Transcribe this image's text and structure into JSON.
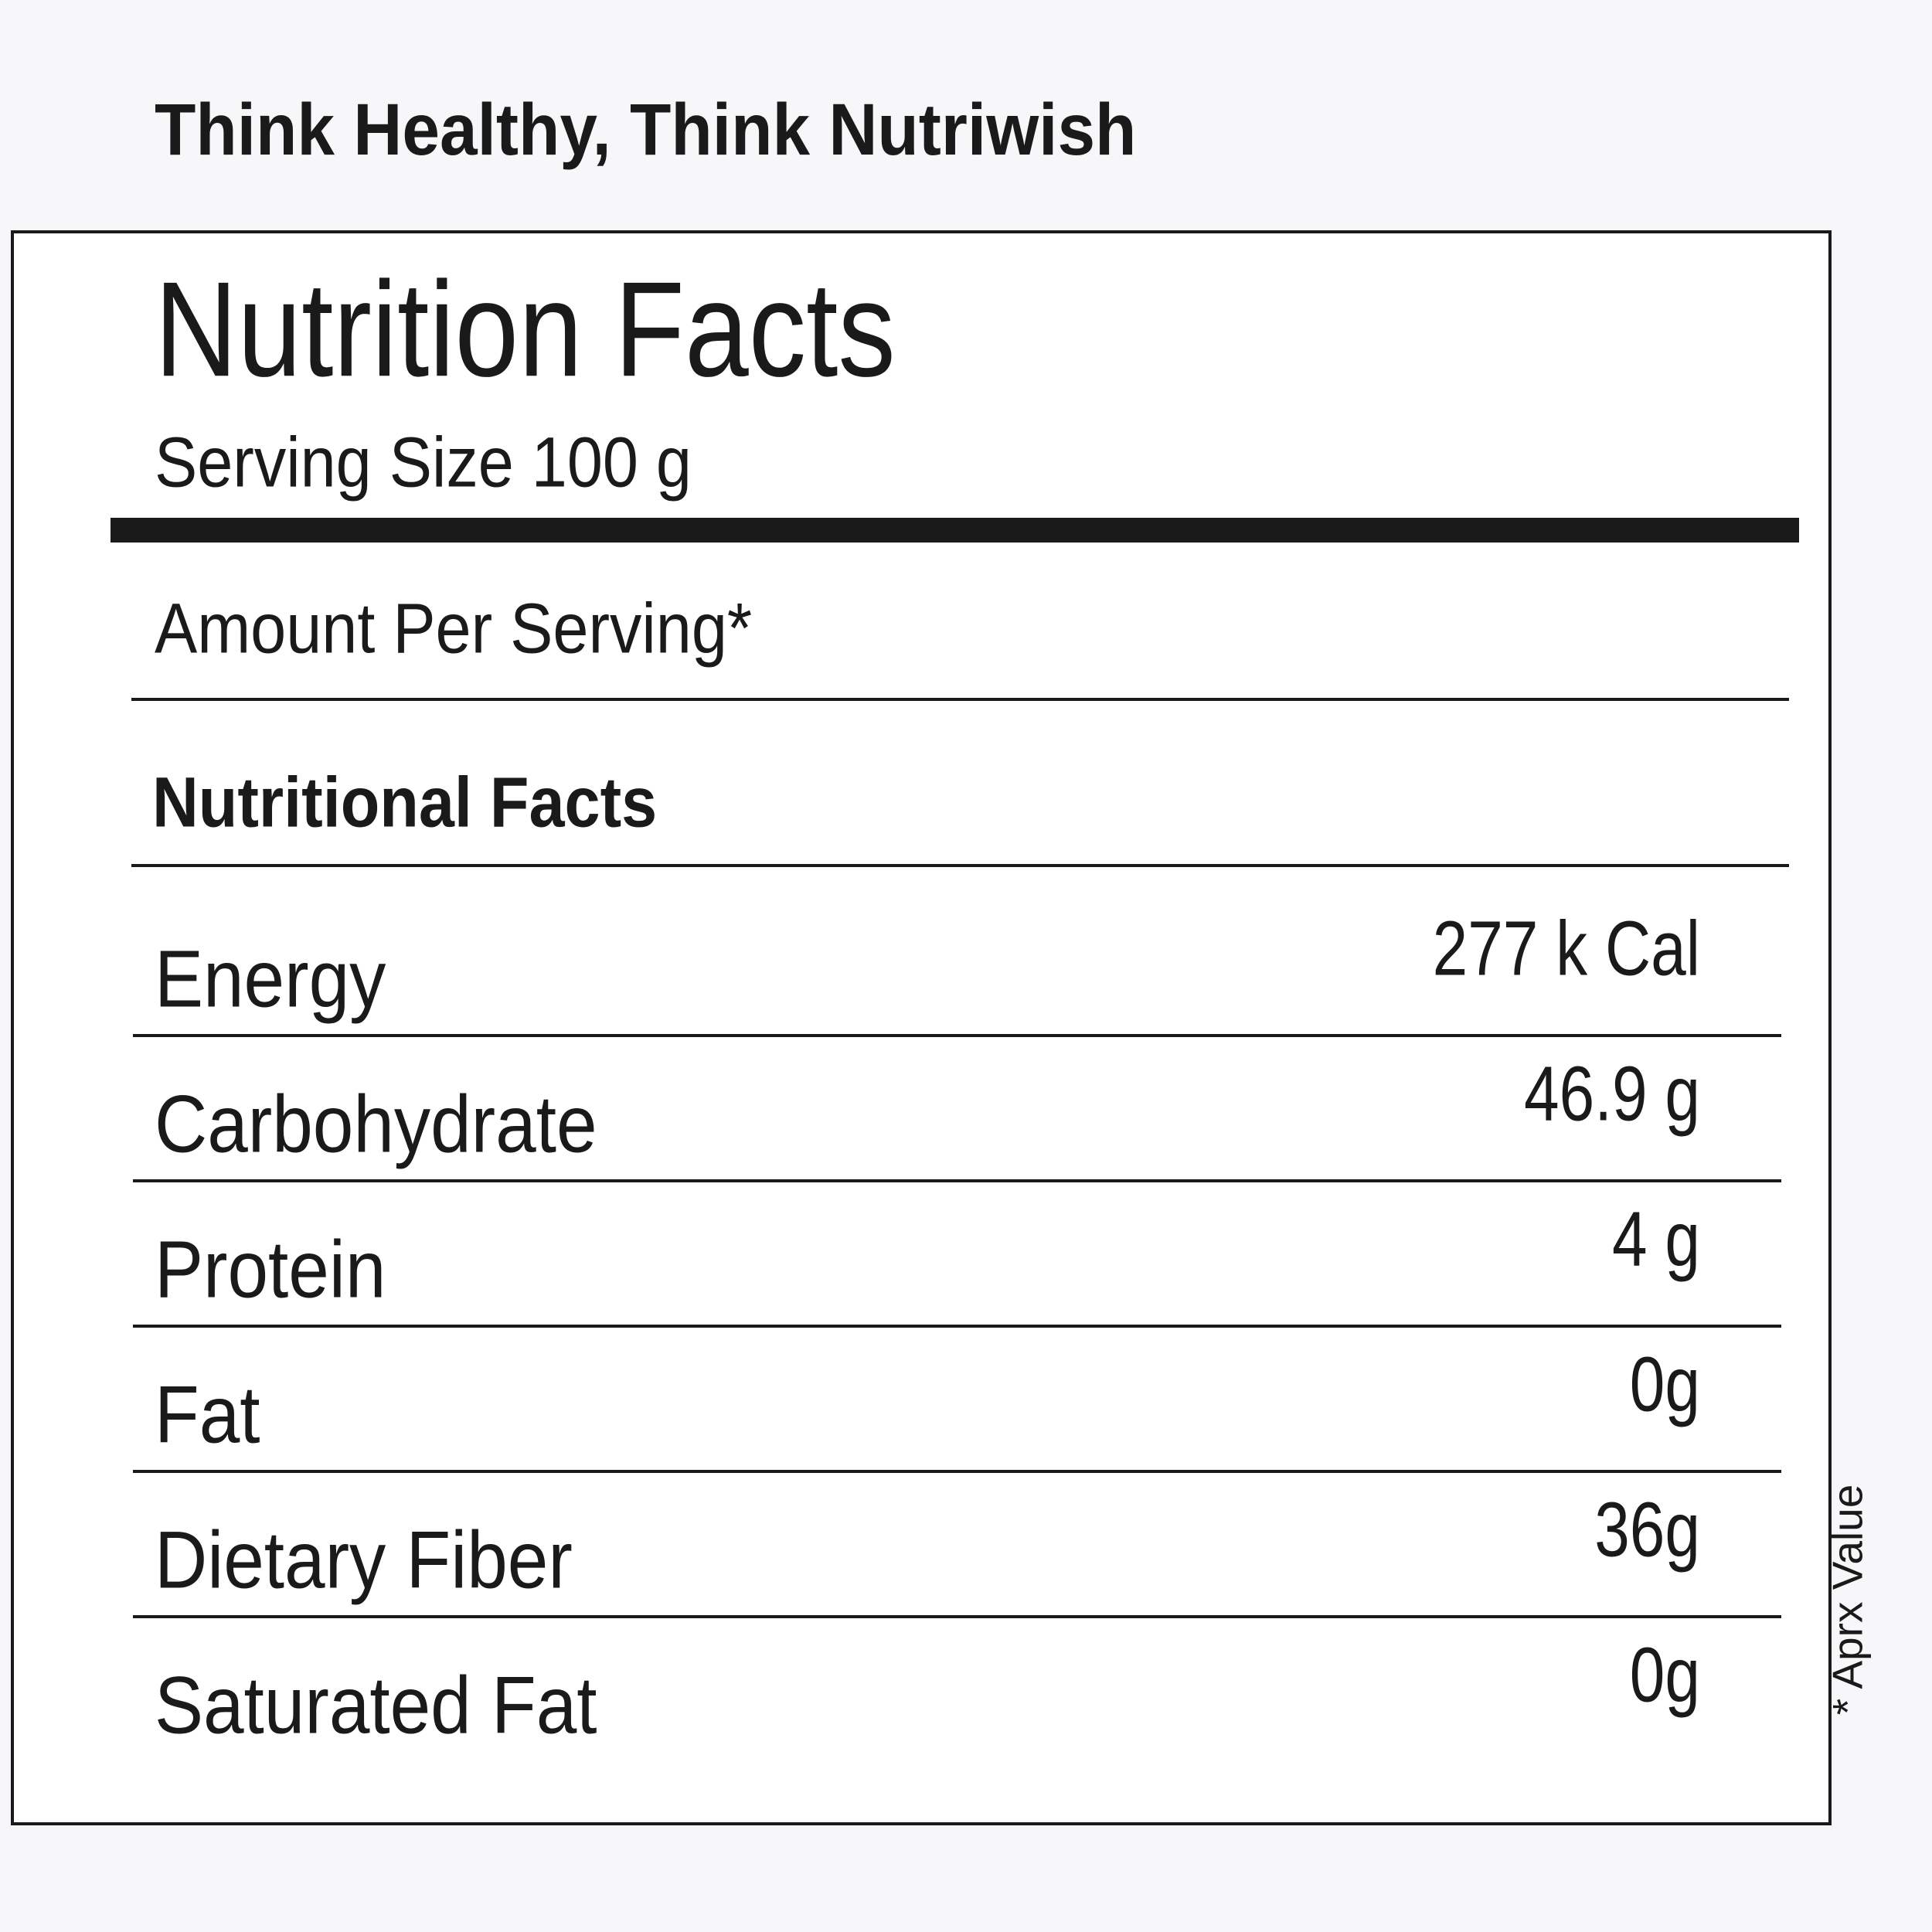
{
  "tagline": "Think Healthy, Think Nutriwish",
  "title": "Nutrition Facts",
  "serving_size": "Serving Size 100 g",
  "amount_per_serving": "Amount Per Serving*",
  "section_title": "Nutritional Facts",
  "rows": [
    {
      "label": "Energy",
      "value": "277 k Cal"
    },
    {
      "label": "Carbohydrate",
      "value": "46.9 g"
    },
    {
      "label": "Protein",
      "value": "4 g"
    },
    {
      "label": "Fat",
      "value": "0g"
    },
    {
      "label": "Dietary Fiber",
      "value": "36g"
    },
    {
      "label": "Saturated Fat",
      "value": "0g"
    }
  ],
  "footnote": "* Aprx Value"
}
